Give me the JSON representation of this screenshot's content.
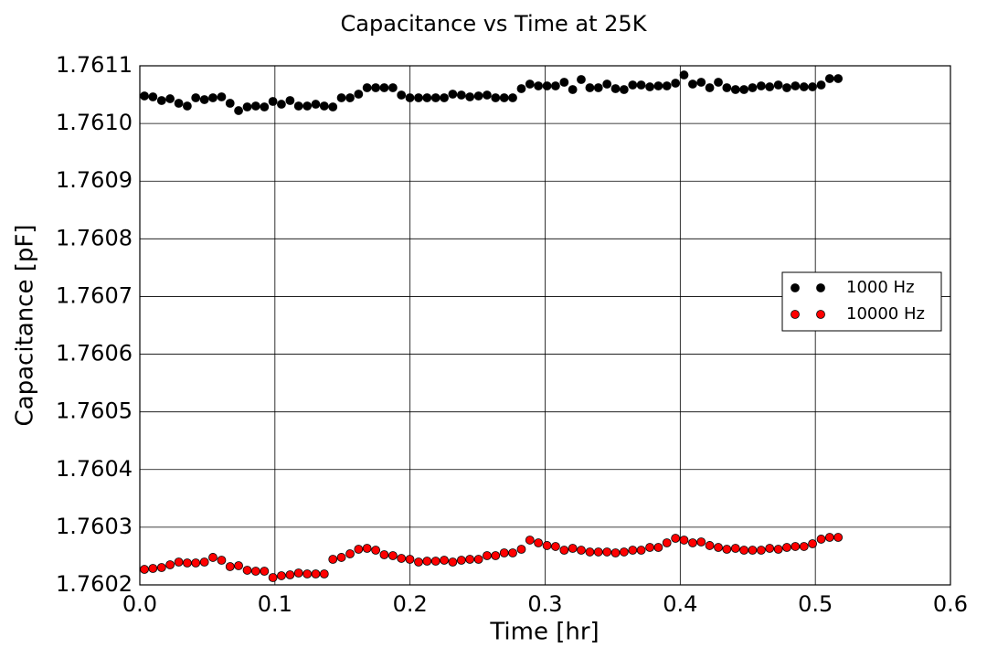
{
  "chart_data": {
    "type": "scatter",
    "title": "Capacitance vs Time at 25K",
    "xlabel": "Time [hr]",
    "ylabel": "Capacitance [pF]",
    "x": [
      0.0034,
      0.0097,
      0.0161,
      0.0224,
      0.0288,
      0.0351,
      0.0414,
      0.0478,
      0.0541,
      0.0605,
      0.0668,
      0.0731,
      0.0795,
      0.0858,
      0.0922,
      0.0985,
      0.1048,
      0.1112,
      0.1175,
      0.1239,
      0.1302,
      0.1365,
      0.1429,
      0.1492,
      0.1556,
      0.1619,
      0.1682,
      0.1746,
      0.1809,
      0.1873,
      0.1936,
      0.1999,
      0.2063,
      0.2126,
      0.219,
      0.2253,
      0.2316,
      0.238,
      0.2443,
      0.2507,
      0.257,
      0.2633,
      0.2697,
      0.276,
      0.2824,
      0.2887,
      0.295,
      0.3014,
      0.3077,
      0.3141,
      0.3204,
      0.3267,
      0.3331,
      0.3394,
      0.3458,
      0.3521,
      0.3584,
      0.3648,
      0.3711,
      0.3775,
      0.3838,
      0.3901,
      0.3965,
      0.4028,
      0.4092,
      0.4155,
      0.4218,
      0.4282,
      0.4345,
      0.4409,
      0.4472,
      0.4535,
      0.4599,
      0.4662,
      0.4726,
      0.4789,
      0.4852,
      0.4916,
      0.4979,
      0.5043,
      0.5106,
      0.5169
    ],
    "series": [
      {
        "name": "1000 Hz",
        "color": "#000000",
        "values": [
          1.7610477,
          1.7610461,
          1.7610398,
          1.7610429,
          1.761035,
          1.7610303,
          1.7610445,
          1.7610414,
          1.7610445,
          1.7610461,
          1.761035,
          1.7610223,
          1.7610287,
          1.7610303,
          1.7610287,
          1.7610382,
          1.7610334,
          1.7610398,
          1.7610303,
          1.7610303,
          1.7610334,
          1.7610303,
          1.7610287,
          1.7610445,
          1.7610445,
          1.7610509,
          1.761062,
          1.761062,
          1.761062,
          1.761062,
          1.7610493,
          1.7610445,
          1.7610445,
          1.7610445,
          1.7610445,
          1.7610445,
          1.7610509,
          1.7610493,
          1.7610461,
          1.7610477,
          1.7610493,
          1.7610445,
          1.7610445,
          1.7610445,
          1.7610604,
          1.7610683,
          1.7610651,
          1.7610651,
          1.7610651,
          1.7610715,
          1.7610588,
          1.7610762,
          1.761062,
          1.761062,
          1.7610683,
          1.7610604,
          1.7610588,
          1.7610667,
          1.7610667,
          1.7610635,
          1.7610651,
          1.7610651,
          1.7610699,
          1.7610841,
          1.7610683,
          1.7610715,
          1.761062,
          1.7610715,
          1.761062,
          1.7610588,
          1.7610588,
          1.761062,
          1.7610651,
          1.7610635,
          1.7610667,
          1.761062,
          1.7610651,
          1.7610635,
          1.7610635,
          1.7610667,
          1.7610778,
          1.7610778
        ]
      },
      {
        "name": "10000 Hz",
        "color": "#ff0000",
        "values": [
          1.7602269,
          1.7602285,
          1.7602301,
          1.7602349,
          1.7602396,
          1.760238,
          1.760238,
          1.7602396,
          1.7602476,
          1.7602428,
          1.7602317,
          1.7602333,
          1.7602254,
          1.7602238,
          1.7602238,
          1.7602127,
          1.7602159,
          1.7602174,
          1.7602206,
          1.760219,
          1.760219,
          1.760219,
          1.7602444,
          1.7602476,
          1.7602539,
          1.7602618,
          1.7602634,
          1.7602602,
          1.7602523,
          1.7602507,
          1.760246,
          1.7602444,
          1.7602396,
          1.7602412,
          1.7602412,
          1.7602428,
          1.7602396,
          1.7602428,
          1.7602444,
          1.7602444,
          1.7602507,
          1.7602507,
          1.7602555,
          1.7602555,
          1.7602618,
          1.7602777,
          1.7602729,
          1.7602682,
          1.7602666,
          1.7602602,
          1.7602634,
          1.7602602,
          1.7602571,
          1.7602571,
          1.7602571,
          1.7602555,
          1.7602571,
          1.7602602,
          1.7602602,
          1.760265,
          1.760265,
          1.7602729,
          1.7602808,
          1.7602777,
          1.7602729,
          1.7602745,
          1.7602682,
          1.760265,
          1.7602618,
          1.7602634,
          1.7602602,
          1.7602602,
          1.7602602,
          1.7602634,
          1.7602618,
          1.760265,
          1.7602666,
          1.7602666,
          1.7602713,
          1.7602793,
          1.7602824,
          1.7602824
        ]
      }
    ],
    "xlim": [
      0,
      0.6
    ],
    "xticks": [
      {
        "value": 0,
        "label": "0.0"
      },
      0.1,
      0.2,
      0.3,
      0.4,
      0.5,
      0.6
    ],
    "ylim": [
      1.7602,
      1.7611
    ],
    "yticks": [
      1.7602,
      1.7603,
      1.7604,
      1.7605,
      1.7606,
      1.7607,
      1.7608,
      1.7609,
      {
        "value": 1.761,
        "label": "1.7610"
      },
      1.7611
    ],
    "grid": true,
    "legend": "center right"
  }
}
